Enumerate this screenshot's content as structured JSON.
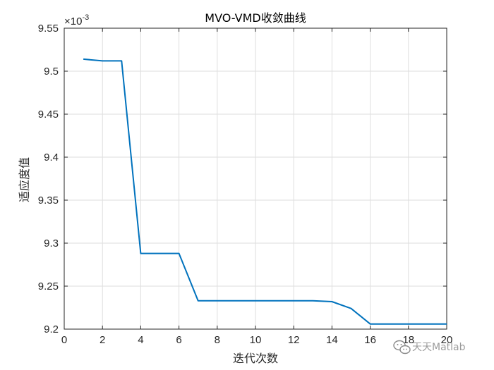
{
  "chart_data": {
    "type": "line",
    "title": "MVO-VMD收敛曲线",
    "xlabel": "迭代次数",
    "ylabel": "适应度值",
    "y_exponent_label": "×10",
    "y_exponent_power": "-3",
    "xlim": [
      0,
      20
    ],
    "ylim": [
      9.2,
      9.55
    ],
    "x_ticks": [
      0,
      2,
      4,
      6,
      8,
      10,
      12,
      14,
      16,
      18,
      20
    ],
    "y_ticks": [
      9.2,
      9.25,
      9.3,
      9.35,
      9.4,
      9.45,
      9.5,
      9.55
    ],
    "y_tick_labels": [
      "9.2",
      "9.25",
      "9.3",
      "9.35",
      "9.4",
      "9.45",
      "9.5",
      "9.55"
    ],
    "grid": true,
    "series": [
      {
        "color": "#0072BD",
        "x": [
          1,
          2,
          3,
          4,
          5,
          6,
          7,
          8,
          9,
          10,
          11,
          12,
          13,
          14,
          15,
          16,
          17,
          18,
          19,
          20
        ],
        "y": [
          9.514,
          9.512,
          9.512,
          9.288,
          9.288,
          9.288,
          9.233,
          9.233,
          9.233,
          9.233,
          9.233,
          9.233,
          9.233,
          9.232,
          9.224,
          9.206,
          9.206,
          9.206,
          9.206,
          9.206
        ]
      }
    ]
  },
  "watermark": {
    "text": "天天Matlab",
    "icon": "wechat-icon"
  }
}
